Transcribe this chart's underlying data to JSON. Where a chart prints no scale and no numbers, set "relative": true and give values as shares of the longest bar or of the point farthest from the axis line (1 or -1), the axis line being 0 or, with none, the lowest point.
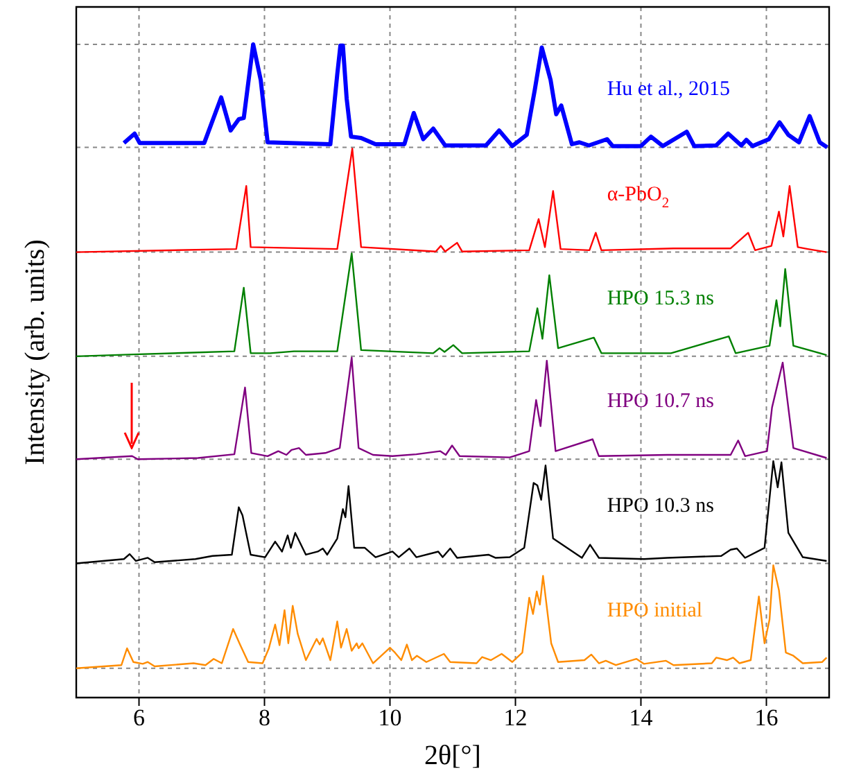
{
  "chart_data": {
    "type": "line",
    "relative": true,
    "xlabel": "2θ[°]",
    "ylabel": "Intensity (arb. units)",
    "xlim": [
      5,
      17
    ],
    "xticks": [
      6,
      8,
      10,
      12,
      14,
      16
    ],
    "grid": true,
    "series": [
      {
        "name": "Hu et al., 2015",
        "color": "#0000ff",
        "x": [
          5.76,
          5.93,
          6.01,
          7.04,
          7.31,
          7.46,
          7.59,
          7.67,
          7.82,
          7.94,
          8.05,
          9.05,
          9.16,
          9.21,
          9.25,
          9.31,
          9.38,
          9.54,
          9.77,
          10.23,
          10.38,
          10.53,
          10.69,
          10.88,
          11.53,
          11.74,
          11.95,
          12.18,
          12.31,
          12.42,
          12.56,
          12.65,
          12.73,
          12.9,
          13.02,
          13.17,
          13.46,
          13.55,
          14.0,
          14.16,
          14.35,
          14.73,
          14.85,
          15.2,
          15.39,
          15.6,
          15.68,
          15.78,
          16.04,
          16.21,
          16.35,
          16.52,
          16.69,
          16.85,
          16.97
        ],
        "values": [
          0.842,
          0.857,
          0.842,
          0.842,
          0.915,
          0.862,
          0.88,
          0.882,
          1,
          0.943,
          0.843,
          0.84,
          0.952,
          0.998,
          0.998,
          0.913,
          0.852,
          0.85,
          0.84,
          0.84,
          0.89,
          0.848,
          0.865,
          0.838,
          0.838,
          0.862,
          0.837,
          0.855,
          0.928,
          0.995,
          0.943,
          0.888,
          0.902,
          0.84,
          0.843,
          0.838,
          0.848,
          0.837,
          0.837,
          0.852,
          0.837,
          0.86,
          0.837,
          0.838,
          0.857,
          0.838,
          0.847,
          0.837,
          0.848,
          0.875,
          0.855,
          0.843,
          0.885,
          0.843,
          0.835
        ]
      },
      {
        "name": "α-PbO$_{2}$",
        "color": "#ff0000",
        "x": [
          5.0,
          7.55,
          7.71,
          7.78,
          9.16,
          9.4,
          9.54,
          10.73,
          10.81,
          10.88,
          11.07,
          11.15,
          12.22,
          12.37,
          12.47,
          12.6,
          12.72,
          13.18,
          13.28,
          13.37,
          14.52,
          15.43,
          15.71,
          15.82,
          16.08,
          16.2,
          16.27,
          16.37,
          16.5,
          16.66,
          16.96
        ],
        "values": [
          0.667,
          0.672,
          0.773,
          0.675,
          0.672,
          0.833,
          0.675,
          0.668,
          0.677,
          0.668,
          0.682,
          0.668,
          0.67,
          0.72,
          0.675,
          0.765,
          0.672,
          0.67,
          0.698,
          0.67,
          0.673,
          0.673,
          0.698,
          0.67,
          0.677,
          0.732,
          0.692,
          0.773,
          0.675,
          0.672,
          0.667
        ]
      },
      {
        "name": "HPO 15.3 ns",
        "color": "#008000",
        "x": [
          5.0,
          5.91,
          7.52,
          7.67,
          7.78,
          8.09,
          8.47,
          9.16,
          9.39,
          9.54,
          10.69,
          10.79,
          10.87,
          11.01,
          11.15,
          12.22,
          12.35,
          12.43,
          12.54,
          12.68,
          13.25,
          13.37,
          14.48,
          15.4,
          15.51,
          16.05,
          16.16,
          16.22,
          16.3,
          16.43,
          16.96
        ],
        "values": [
          0.5,
          0.503,
          0.508,
          0.61,
          0.505,
          0.505,
          0.508,
          0.508,
          0.665,
          0.51,
          0.505,
          0.513,
          0.507,
          0.518,
          0.505,
          0.508,
          0.577,
          0.528,
          0.63,
          0.513,
          0.53,
          0.505,
          0.505,
          0.532,
          0.505,
          0.517,
          0.59,
          0.548,
          0.64,
          0.517,
          0.502
        ]
      },
      {
        "name": "HPO 10.7 ns",
        "color": "#800080",
        "x": [
          5.0,
          5.89,
          5.98,
          6.94,
          7.52,
          7.69,
          7.79,
          8.05,
          8.22,
          8.35,
          8.43,
          8.55,
          8.66,
          8.97,
          9.2,
          9.39,
          9.5,
          9.73,
          10.04,
          10.42,
          10.8,
          10.89,
          10.99,
          11.11,
          11.91,
          12.22,
          12.33,
          12.4,
          12.5,
          12.64,
          13.23,
          13.33,
          14.42,
          15.43,
          15.55,
          15.66,
          16.01,
          16.09,
          16.26,
          16.43,
          16.96
        ],
        "values": [
          0.335,
          0.34,
          0.335,
          0.337,
          0.343,
          0.45,
          0.345,
          0.34,
          0.348,
          0.342,
          0.35,
          0.353,
          0.342,
          0.345,
          0.353,
          0.498,
          0.353,
          0.342,
          0.34,
          0.343,
          0.348,
          0.342,
          0.357,
          0.34,
          0.338,
          0.348,
          0.43,
          0.388,
          0.493,
          0.348,
          0.367,
          0.34,
          0.342,
          0.342,
          0.365,
          0.34,
          0.348,
          0.418,
          0.49,
          0.353,
          0.337
        ]
      },
      {
        "name": "HPO 10.3 ns",
        "color": "#000000",
        "x": [
          5.0,
          5.76,
          5.85,
          5.95,
          6.14,
          6.25,
          6.9,
          7.17,
          7.48,
          7.59,
          7.65,
          7.78,
          8.01,
          8.17,
          8.28,
          8.37,
          8.42,
          8.49,
          8.66,
          8.85,
          8.93,
          9.0,
          9.16,
          9.25,
          9.29,
          9.34,
          9.43,
          9.6,
          9.77,
          10.04,
          10.14,
          10.31,
          10.42,
          10.77,
          10.84,
          10.96,
          11.07,
          11.57,
          11.68,
          11.91,
          12.14,
          12.29,
          12.35,
          12.41,
          12.48,
          12.6,
          13.06,
          13.19,
          13.33,
          14.05,
          14.42,
          15.28,
          15.43,
          15.53,
          15.66,
          15.97,
          16.11,
          16.18,
          16.24,
          16.35,
          16.58,
          16.96
        ],
        "values": [
          0.168,
          0.175,
          0.183,
          0.172,
          0.177,
          0.17,
          0.175,
          0.18,
          0.182,
          0.258,
          0.245,
          0.182,
          0.178,
          0.203,
          0.187,
          0.213,
          0.193,
          0.217,
          0.182,
          0.187,
          0.192,
          0.182,
          0.208,
          0.255,
          0.242,
          0.292,
          0.193,
          0.193,
          0.178,
          0.187,
          0.178,
          0.192,
          0.178,
          0.187,
          0.178,
          0.192,
          0.177,
          0.182,
          0.177,
          0.178,
          0.193,
          0.297,
          0.293,
          0.27,
          0.325,
          0.208,
          0.177,
          0.198,
          0.177,
          0.175,
          0.177,
          0.18,
          0.19,
          0.192,
          0.177,
          0.193,
          0.332,
          0.29,
          0.33,
          0.217,
          0.178,
          0.172
        ]
      },
      {
        "name": "HPO initial",
        "color": "#ff8c00",
        "x": [
          5.0,
          5.72,
          5.81,
          5.91,
          6.06,
          6.14,
          6.25,
          6.87,
          7.06,
          7.19,
          7.32,
          7.5,
          7.61,
          7.74,
          7.97,
          8.07,
          8.17,
          8.24,
          8.32,
          8.38,
          8.45,
          8.53,
          8.66,
          8.83,
          8.88,
          8.93,
          9.05,
          9.16,
          9.22,
          9.31,
          9.39,
          9.47,
          9.5,
          9.56,
          9.73,
          10.0,
          10.08,
          10.18,
          10.27,
          10.35,
          10.43,
          10.58,
          10.86,
          10.96,
          11.38,
          11.47,
          11.61,
          11.78,
          11.95,
          12.11,
          12.22,
          12.28,
          12.34,
          12.39,
          12.44,
          12.57,
          12.68,
          13.1,
          13.21,
          13.33,
          13.44,
          13.6,
          13.93,
          14.05,
          14.4,
          14.52,
          15.13,
          15.2,
          15.37,
          15.47,
          15.57,
          15.75,
          15.88,
          15.97,
          16.05,
          16.11,
          16.2,
          16.31,
          16.43,
          16.58,
          16.89,
          16.96
        ],
        "values": [
          0,
          0.005,
          0.032,
          0.01,
          0.007,
          0.01,
          0.003,
          0.008,
          0.005,
          0.015,
          0.008,
          0.063,
          0.038,
          0.01,
          0.008,
          0.032,
          0.07,
          0.037,
          0.093,
          0.04,
          0.1,
          0.055,
          0.013,
          0.047,
          0.038,
          0.048,
          0.013,
          0.075,
          0.033,
          0.063,
          0.028,
          0.04,
          0.032,
          0.04,
          0.008,
          0.033,
          0.025,
          0.013,
          0.038,
          0.013,
          0.02,
          0.01,
          0.023,
          0.01,
          0.008,
          0.018,
          0.013,
          0.023,
          0.01,
          0.025,
          0.113,
          0.087,
          0.123,
          0.102,
          0.148,
          0.04,
          0.01,
          0.013,
          0.022,
          0.008,
          0.012,
          0.005,
          0.015,
          0.007,
          0.012,
          0.005,
          0.008,
          0.017,
          0.013,
          0.017,
          0.008,
          0.013,
          0.115,
          0.04,
          0.078,
          0.165,
          0.125,
          0.025,
          0.02,
          0.008,
          0.01,
          0.017
        ]
      }
    ]
  }
}
